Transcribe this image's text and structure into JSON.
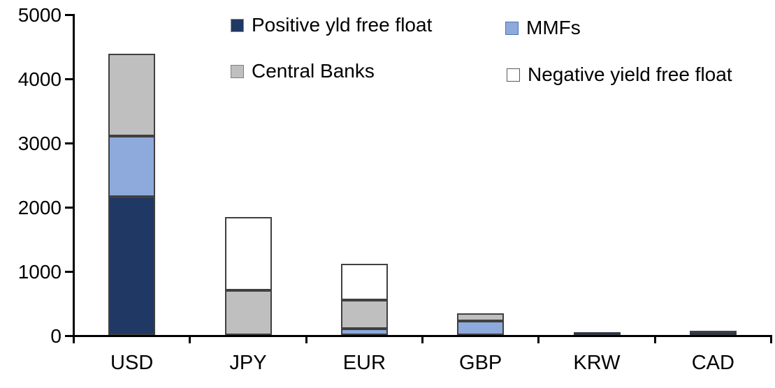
{
  "chart_data": {
    "type": "bar",
    "stacked": true,
    "title": "",
    "xlabel": "",
    "ylabel": "",
    "categories": [
      "USD",
      "JPY",
      "EUR",
      "GBP",
      "KRW",
      "CAD"
    ],
    "series": [
      {
        "name": "Positive yld free float",
        "color": "#1F3864",
        "swatch_border": "#8C8C8C",
        "values": [
          2150,
          0,
          0,
          0,
          45,
          45
        ]
      },
      {
        "name": "MMFs",
        "color": "#8EA9DB",
        "swatch_border": "#4A74B8",
        "values": [
          950,
          0,
          100,
          220,
          0,
          0
        ]
      },
      {
        "name": "Central Banks",
        "color": "#BFBFBF",
        "swatch_border": "#7F7F7F",
        "values": [
          1280,
          700,
          445,
          115,
          0,
          25
        ]
      },
      {
        "name": "Negative yield free float",
        "color": "#FFFFFF",
        "swatch_border": "#595959",
        "values": [
          0,
          1140,
          565,
          0,
          0,
          0
        ]
      }
    ],
    "stack_order_bottom_to_top": [
      "Positive yld free float",
      "MMFs",
      "Central Banks",
      "Negative yield free float"
    ],
    "totals_by_category": [
      4380,
      1840,
      1110,
      335,
      45,
      70
    ],
    "ylim": [
      0,
      5000
    ],
    "yticks": [
      0,
      1000,
      2000,
      3000,
      4000,
      5000
    ],
    "grid": false,
    "legend_position": "top, two columns, square markers",
    "segment_border_color": "#404040",
    "axis_color": "#000000"
  }
}
